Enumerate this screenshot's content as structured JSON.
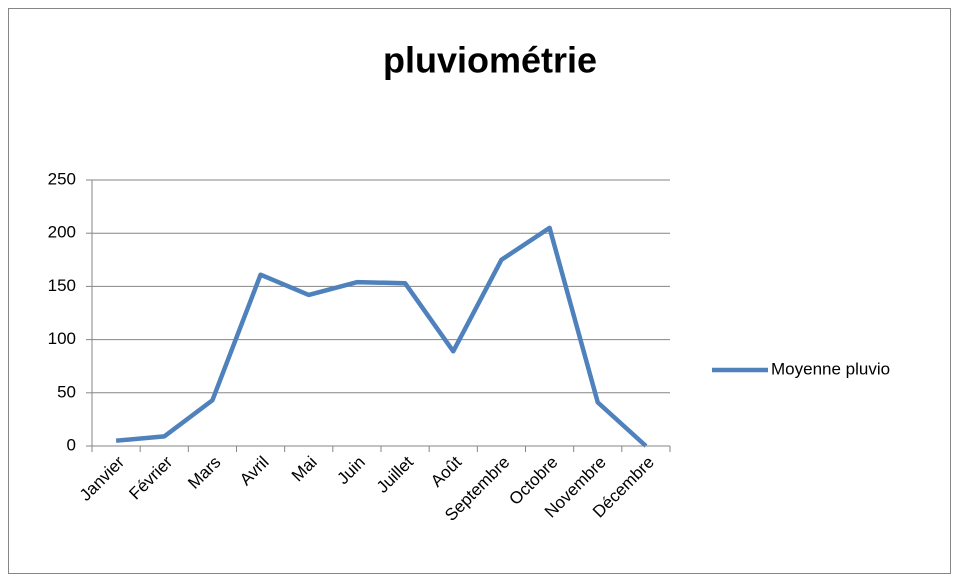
{
  "chart_data": {
    "type": "line",
    "title": "pluviométrie",
    "categories": [
      "Janvier",
      "Février",
      "Mars",
      "Avril",
      "Mai",
      "Juin",
      "Juillet",
      "Août",
      "Septembre",
      "Octobre",
      "Novembre",
      "Décembre"
    ],
    "series": [
      {
        "name": "Moyenne pluvio",
        "color": "#4f81bd",
        "values": [
          5,
          9,
          43,
          161,
          142,
          154,
          153,
          89,
          175,
          205,
          41,
          0
        ]
      }
    ],
    "ylim": [
      0,
      250
    ],
    "yticks": [
      0,
      50,
      100,
      150,
      200,
      250
    ],
    "grid": true,
    "legend": "right"
  }
}
